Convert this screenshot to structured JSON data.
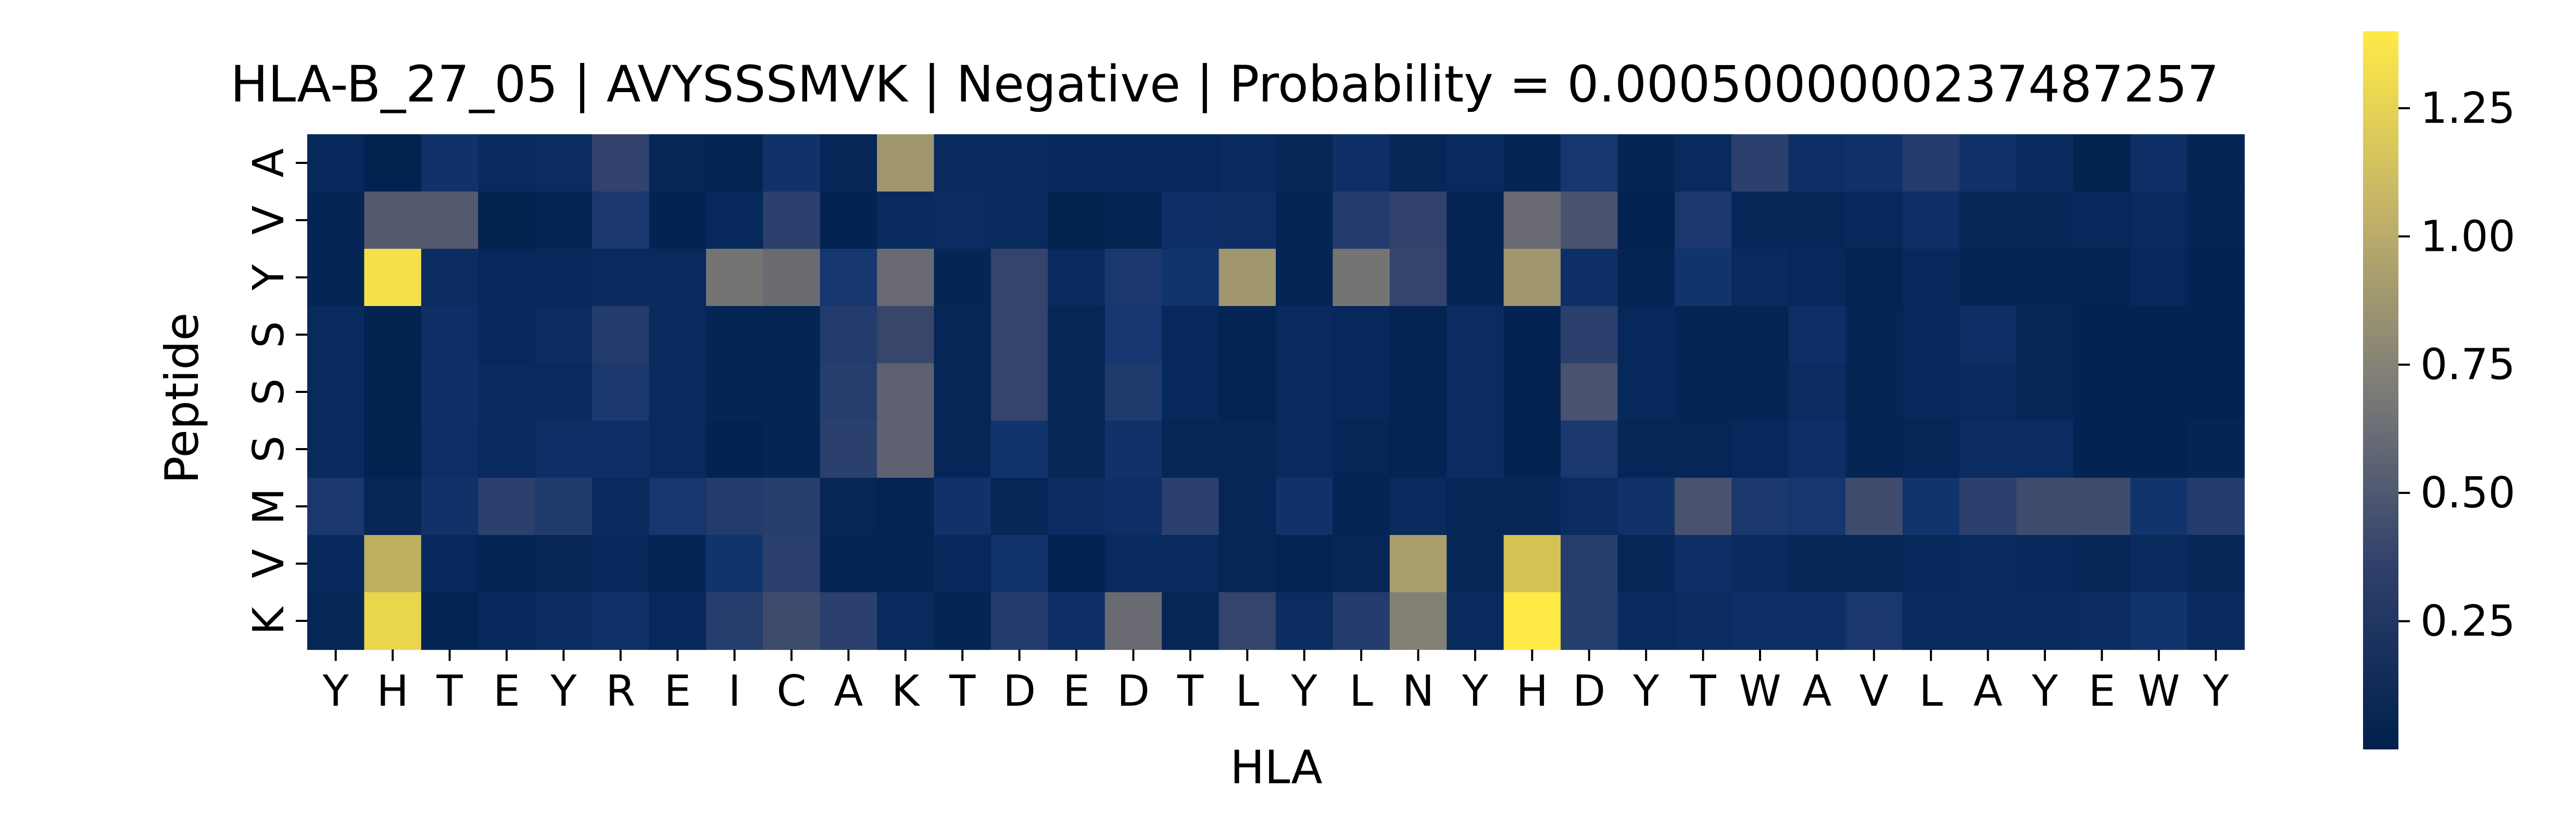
{
  "chart_data": {
    "type": "heatmap",
    "title": "HLA-B_27_05 | AVYSSSMVK | Negative | Probability = 0.0005000000237487257",
    "xlabel": "HLA",
    "ylabel": "Peptide",
    "x_categories": [
      "Y",
      "H",
      "T",
      "E",
      "Y",
      "R",
      "E",
      "I",
      "C",
      "A",
      "K",
      "T",
      "D",
      "E",
      "D",
      "T",
      "L",
      "Y",
      "L",
      "N",
      "Y",
      "H",
      "D",
      "Y",
      "T",
      "W",
      "A",
      "V",
      "L",
      "A",
      "Y",
      "E",
      "W",
      "Y"
    ],
    "y_categories": [
      "A",
      "V",
      "Y",
      "S",
      "S",
      "S",
      "M",
      "V",
      "K"
    ],
    "colorscale": "cividis",
    "colorbar": {
      "min": 0.0,
      "max": 1.4,
      "ticks": [
        0.25,
        0.5,
        0.75,
        1.0,
        1.25
      ],
      "tick_labels": [
        "0.25",
        "0.50",
        "0.75",
        "1.00",
        "1.25"
      ]
    },
    "values": [
      [
        0.08,
        0.02,
        0.18,
        0.1,
        0.12,
        0.38,
        0.06,
        0.04,
        0.18,
        0.06,
        0.95,
        0.1,
        0.1,
        0.08,
        0.08,
        0.08,
        0.1,
        0.06,
        0.15,
        0.06,
        0.1,
        0.05,
        0.22,
        0.05,
        0.1,
        0.35,
        0.15,
        0.18,
        0.3,
        0.18,
        0.1,
        0.02,
        0.15,
        0.05
      ],
      [
        0.04,
        0.55,
        0.55,
        0.02,
        0.05,
        0.25,
        0.03,
        0.08,
        0.35,
        0.03,
        0.1,
        0.12,
        0.1,
        0.02,
        0.04,
        0.15,
        0.14,
        0.05,
        0.3,
        0.38,
        0.04,
        0.65,
        0.5,
        0.03,
        0.25,
        0.06,
        0.06,
        0.08,
        0.15,
        0.06,
        0.06,
        0.08,
        0.1,
        0.05
      ],
      [
        0.05,
        1.35,
        0.12,
        0.08,
        0.08,
        0.1,
        0.1,
        0.72,
        0.66,
        0.22,
        0.65,
        0.05,
        0.4,
        0.1,
        0.25,
        0.2,
        0.95,
        0.05,
        0.72,
        0.4,
        0.05,
        0.95,
        0.15,
        0.04,
        0.2,
        0.1,
        0.08,
        0.04,
        0.08,
        0.04,
        0.04,
        0.04,
        0.08,
        0.03
      ],
      [
        0.1,
        0.02,
        0.15,
        0.08,
        0.12,
        0.3,
        0.1,
        0.05,
        0.05,
        0.3,
        0.42,
        0.06,
        0.4,
        0.06,
        0.22,
        0.08,
        0.04,
        0.1,
        0.08,
        0.04,
        0.12,
        0.03,
        0.35,
        0.08,
        0.05,
        0.05,
        0.15,
        0.05,
        0.08,
        0.15,
        0.06,
        0.03,
        0.03,
        0.03
      ],
      [
        0.1,
        0.02,
        0.16,
        0.1,
        0.1,
        0.25,
        0.1,
        0.05,
        0.05,
        0.32,
        0.6,
        0.06,
        0.4,
        0.06,
        0.28,
        0.08,
        0.04,
        0.1,
        0.08,
        0.04,
        0.12,
        0.03,
        0.5,
        0.08,
        0.05,
        0.05,
        0.12,
        0.05,
        0.08,
        0.1,
        0.06,
        0.03,
        0.03,
        0.03
      ],
      [
        0.1,
        0.02,
        0.15,
        0.1,
        0.15,
        0.15,
        0.1,
        0.03,
        0.05,
        0.35,
        0.6,
        0.06,
        0.2,
        0.06,
        0.18,
        0.06,
        0.06,
        0.1,
        0.06,
        0.04,
        0.12,
        0.03,
        0.25,
        0.06,
        0.06,
        0.08,
        0.15,
        0.05,
        0.06,
        0.12,
        0.12,
        0.03,
        0.03,
        0.05
      ],
      [
        0.25,
        0.06,
        0.18,
        0.35,
        0.28,
        0.1,
        0.22,
        0.3,
        0.32,
        0.06,
        0.04,
        0.18,
        0.06,
        0.12,
        0.15,
        0.35,
        0.06,
        0.18,
        0.04,
        0.1,
        0.06,
        0.06,
        0.12,
        0.18,
        0.5,
        0.25,
        0.22,
        0.45,
        0.2,
        0.35,
        0.45,
        0.45,
        0.2,
        0.3
      ],
      [
        0.08,
        1.1,
        0.08,
        0.05,
        0.06,
        0.08,
        0.05,
        0.2,
        0.35,
        0.05,
        0.05,
        0.08,
        0.2,
        0.03,
        0.1,
        0.1,
        0.06,
        0.04,
        0.06,
        1.0,
        0.06,
        1.2,
        0.32,
        0.06,
        0.15,
        0.1,
        0.06,
        0.06,
        0.08,
        0.1,
        0.08,
        0.06,
        0.1,
        0.06
      ],
      [
        0.06,
        1.3,
        0.04,
        0.08,
        0.12,
        0.18,
        0.08,
        0.32,
        0.45,
        0.35,
        0.1,
        0.05,
        0.3,
        0.15,
        0.65,
        0.06,
        0.4,
        0.12,
        0.3,
        0.8,
        0.1,
        1.4,
        0.32,
        0.1,
        0.12,
        0.15,
        0.15,
        0.25,
        0.1,
        0.1,
        0.1,
        0.12,
        0.2,
        0.1
      ]
    ]
  }
}
